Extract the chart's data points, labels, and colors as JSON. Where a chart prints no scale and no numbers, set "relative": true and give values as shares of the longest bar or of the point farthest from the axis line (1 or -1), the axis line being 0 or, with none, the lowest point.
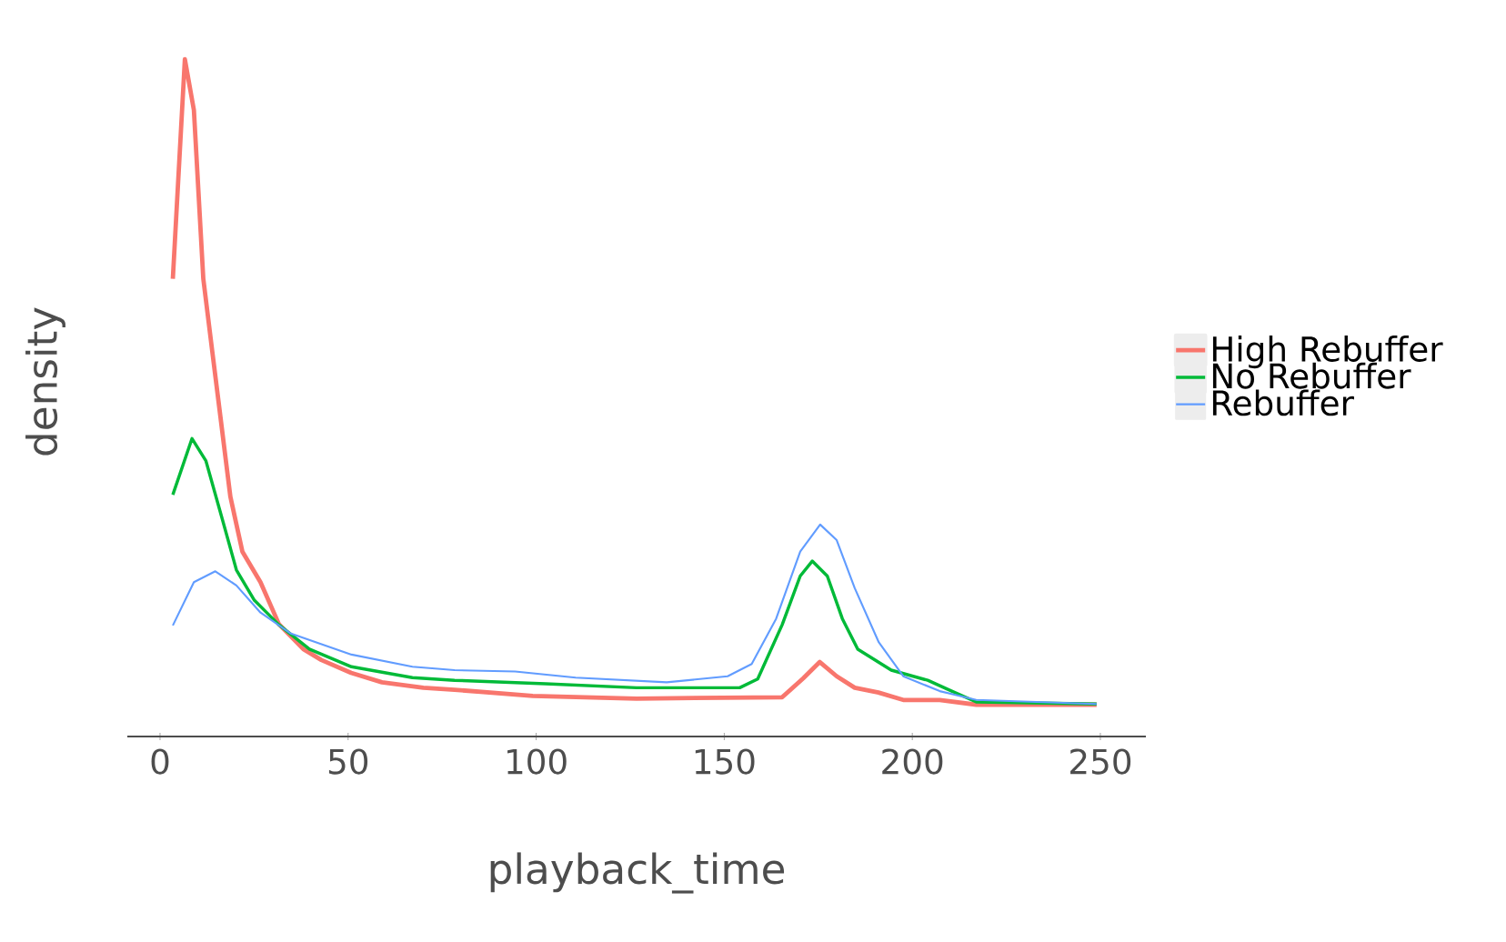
{
  "chart_data": {
    "type": "line",
    "relative": true,
    "xlabel": "playback_time",
    "ylabel": "density",
    "xlim": [
      -8.7,
      262.1
    ],
    "xticks": [
      0,
      50,
      100,
      150,
      200,
      250
    ],
    "legend": "right",
    "series": [
      {
        "name": "High Rebuffer",
        "color": "#f8766d",
        "x": [
          3.4,
          6.6,
          9.0,
          11.5,
          13.9,
          16.3,
          18.7,
          21.9,
          26.7,
          31.6,
          38.1,
          42.9,
          50.8,
          59,
          70,
          78.3,
          99.1,
          126.7,
          165.4,
          171,
          175.4,
          179.9,
          184.7,
          191,
          197.6,
          207.3,
          217,
          249
        ],
        "values": [
          0.676,
          1.0,
          0.925,
          0.676,
          0.568,
          0.461,
          0.354,
          0.273,
          0.228,
          0.166,
          0.129,
          0.113,
          0.094,
          0.08,
          0.072,
          0.069,
          0.06,
          0.056,
          0.058,
          0.086,
          0.11,
          0.089,
          0.072,
          0.065,
          0.054,
          0.054,
          0.047,
          0.047
        ]
      },
      {
        "name": "No Rebuffer",
        "color": "#00ba38",
        "x": [
          3.4,
          8.5,
          12.2,
          16.3,
          20.3,
          25.1,
          31.6,
          39.7,
          50.9,
          67.1,
          78.3,
          102.5,
          126.7,
          154.1,
          158.9,
          165.4,
          170.2,
          173.4,
          177.4,
          181.4,
          185.5,
          194.4,
          204.1,
          210.5,
          217,
          249
        ],
        "values": [
          0.357,
          0.44,
          0.407,
          0.326,
          0.246,
          0.201,
          0.165,
          0.129,
          0.103,
          0.087,
          0.083,
          0.078,
          0.072,
          0.072,
          0.085,
          0.165,
          0.237,
          0.259,
          0.237,
          0.174,
          0.129,
          0.098,
          0.083,
          0.067,
          0.051,
          0.048
        ]
      },
      {
        "name": "Rebuffer",
        "color": "#619cff",
        "x": [
          3.4,
          9.0,
          14.7,
          20.3,
          26.7,
          34.8,
          50.9,
          67.1,
          78.3,
          94.4,
          110.5,
          134.7,
          150.9,
          157.3,
          163.8,
          170.2,
          175.5,
          179.9,
          184.7,
          191.1,
          197.6,
          207.3,
          217,
          249
        ],
        "values": [
          0.164,
          0.228,
          0.244,
          0.223,
          0.183,
          0.152,
          0.121,
          0.103,
          0.098,
          0.096,
          0.087,
          0.08,
          0.089,
          0.107,
          0.174,
          0.273,
          0.313,
          0.29,
          0.219,
          0.139,
          0.089,
          0.067,
          0.054,
          0.048
        ]
      }
    ]
  }
}
